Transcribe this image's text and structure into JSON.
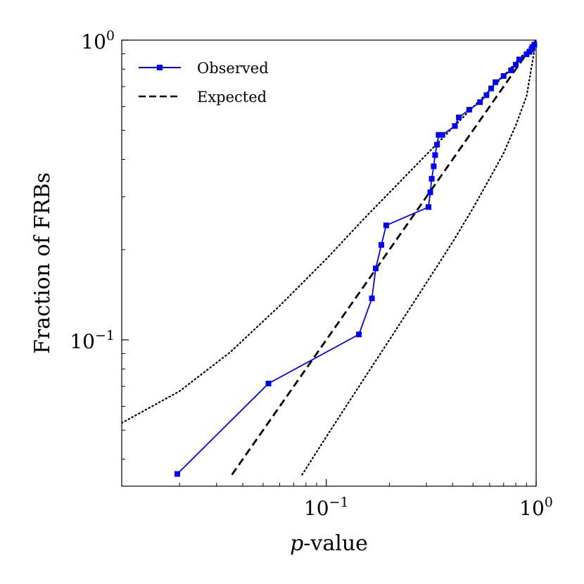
{
  "chart_data": {
    "type": "line",
    "title": "",
    "xlabel_italic": "p",
    "xlabel_rest": "-value",
    "ylabel": "Fraction of FRBs",
    "xscale": "log",
    "yscale": "log",
    "xlim": [
      0.0106,
      1.0
    ],
    "ylim": [
      0.0325,
      1.0
    ],
    "x_tick_labels": [
      {
        "value": 0.1,
        "base": "10",
        "exp": "−1"
      },
      {
        "value": 1.0,
        "base": "10",
        "exp": "0"
      }
    ],
    "y_tick_labels": [
      {
        "value": 0.1,
        "base": "10",
        "exp": "−1"
      },
      {
        "value": 1.0,
        "base": "10",
        "exp": "0"
      }
    ],
    "legend": {
      "position": "top-left",
      "entries": [
        {
          "label": "Observed",
          "color": "#0000ff",
          "style": "solid-square-markers"
        },
        {
          "label": "Expected",
          "color": "#000000",
          "style": "dashed"
        }
      ]
    },
    "series": [
      {
        "name": "Observed",
        "color": "#0000ff",
        "x": [
          0.0195,
          0.053,
          0.143,
          0.165,
          0.172,
          0.183,
          0.193,
          0.307,
          0.313,
          0.318,
          0.325,
          0.33,
          0.337,
          0.343,
          0.357,
          0.41,
          0.428,
          0.48,
          0.54,
          0.58,
          0.61,
          0.64,
          0.7,
          0.76,
          0.8,
          0.83,
          0.9,
          0.93,
          0.95,
          0.96,
          0.98
        ],
        "y": [
          0.0357,
          0.0715,
          0.1043,
          0.1375,
          0.1732,
          0.2074,
          0.241,
          0.2773,
          0.3107,
          0.3447,
          0.3792,
          0.4134,
          0.448,
          0.483,
          0.483,
          0.517,
          0.552,
          0.586,
          0.621,
          0.655,
          0.69,
          0.724,
          0.759,
          0.793,
          0.828,
          0.862,
          0.897,
          0.914,
          0.931,
          0.948,
          0.966
        ]
      },
      {
        "name": "Expected",
        "color": "#000000",
        "x": [
          0.0355,
          1.0
        ],
        "y": [
          0.0355,
          1.0
        ]
      },
      {
        "name": "Upper bound",
        "color": "#000000",
        "x": [
          0.0106,
          0.02,
          0.035,
          0.06,
          0.1,
          0.15,
          0.2,
          0.3,
          0.4,
          0.5,
          0.6,
          0.7,
          0.8,
          0.9,
          1.0
        ],
        "y": [
          0.0528,
          0.0674,
          0.0912,
          0.13,
          0.186,
          0.252,
          0.31,
          0.415,
          0.51,
          0.597,
          0.68,
          0.76,
          0.84,
          0.92,
          1.0
        ]
      },
      {
        "name": "Lower bound",
        "color": "#000000",
        "x": [
          0.0767,
          0.1,
          0.15,
          0.2,
          0.3,
          0.4,
          0.5,
          0.6,
          0.7,
          0.8,
          0.9,
          1.0
        ],
        "y": [
          0.0355,
          0.0475,
          0.0735,
          0.1,
          0.155,
          0.212,
          0.275,
          0.345,
          0.42,
          0.52,
          0.65,
          1.0
        ]
      }
    ]
  }
}
